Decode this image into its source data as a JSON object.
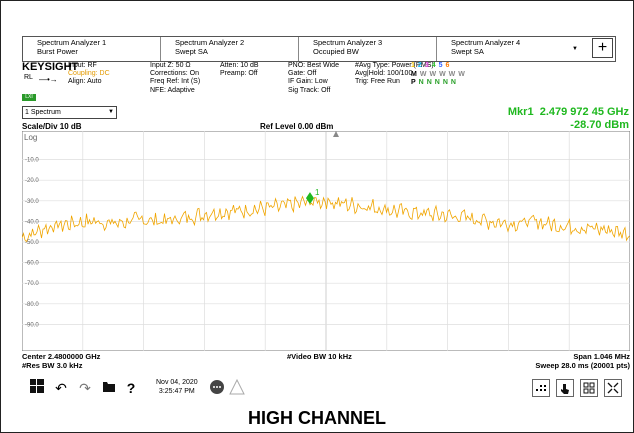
{
  "tabs": [
    {
      "title": "Spectrum Analyzer 1",
      "mode": "Burst Power"
    },
    {
      "title": "Spectrum Analyzer 2",
      "mode": "Swept SA"
    },
    {
      "title": "Spectrum Analyzer 3",
      "mode": "Occupied BW"
    },
    {
      "title": "Spectrum Analyzer 4",
      "mode": "Swept SA"
    }
  ],
  "add_tab_symbol": "+",
  "brand": "KEYSIGHT",
  "rl_label": "RL",
  "lxi_badge": "LXI",
  "settings": {
    "input": "Input: RF",
    "coupling": "Coupling: DC",
    "align": "Align: Auto",
    "input_z": "Input Z: 50 Ω",
    "corrections": "Corrections: On",
    "freq_ref": "Freq Ref: Int (S)",
    "nfe": "NFE: Adaptive",
    "atten": "Atten: 10 dB",
    "preamp": "Preamp: Off",
    "pno": "PNO: Best Wide",
    "gate": "Gate: Off",
    "if_gain": "IF Gain: Low",
    "sig_track": "Sig Track: Off",
    "avg_type": "#Avg Type: Power (RMS)",
    "avg_hold": "Avg|Hold: 100/100",
    "trig": "Trig: Free Run"
  },
  "trace_numbers": [
    "1",
    "2",
    "3",
    "4",
    "5",
    "6"
  ],
  "trace_row_m": [
    "M",
    "W",
    "W",
    "W",
    "W",
    "W"
  ],
  "trace_row_p": [
    "P",
    "N",
    "N",
    "N",
    "N",
    "N"
  ],
  "trace_colors": [
    "#f0c000",
    "#1ec8ff",
    "#e040e0",
    "#30c030",
    "#3060ff",
    "#ff7a00"
  ],
  "view_selector": "1 Spectrum",
  "marker": {
    "label": "Mkr1",
    "freq": "2.479 972 45 GHz",
    "level": "-28.70 dBm",
    "number": "1"
  },
  "scale_div": "Scale/Div 10 dB",
  "ref_level": "Ref Level 0.00 dBm",
  "log_label": "Log",
  "y_ticks": [
    "-10.0",
    "-20.0",
    "-30.0",
    "-40.0",
    "-50.0",
    "-60.0",
    "-70.0",
    "-80.0",
    "-90.0"
  ],
  "center": "Center 2.4800000 GHz",
  "res_bw": "#Res BW 3.0 kHz",
  "video_bw": "#Video BW 10 kHz",
  "span": "Span 1.046 MHz",
  "sweep": "Sweep 28.0 ms (20001 pts)",
  "date": "Nov 04, 2020",
  "time": "3:25:47 PM",
  "caption": "HIGH CHANNEL",
  "chart_data": {
    "type": "line",
    "x_center_ghz": 2.48,
    "x_span_mhz": 1.046,
    "ylim": [
      -100,
      0
    ],
    "y_unit": "dBm",
    "series": [
      {
        "x_mhz": [
          -0.523,
          -0.48,
          -0.44,
          -0.4,
          -0.36,
          -0.32,
          -0.28,
          -0.24,
          -0.2,
          -0.16,
          -0.12,
          -0.08,
          -0.04,
          0.0,
          0.04,
          0.08,
          0.12,
          0.16,
          0.2,
          0.24,
          0.28,
          0.32,
          0.36,
          0.4,
          0.44,
          0.48,
          0.523
        ],
        "dbm": [
          -48,
          -43,
          -41,
          -40,
          -41,
          -39,
          -40,
          -38,
          -36,
          -35,
          -34,
          -33,
          -31,
          -30,
          -32,
          -33,
          -35,
          -36,
          -37,
          -38,
          -40,
          -41,
          -40,
          -42,
          -43,
          -44,
          -46
        ]
      }
    ],
    "marker": {
      "x_mhz": -0.0276,
      "dbm": -28.7
    }
  }
}
